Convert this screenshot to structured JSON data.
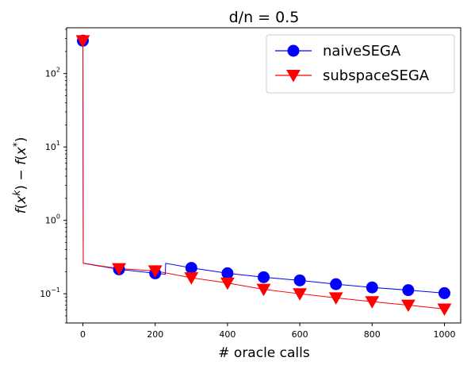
{
  "chart_data": {
    "type": "line",
    "title": "d/n = 0.5",
    "xlabel": "# oracle calls",
    "ylabel": "f(x^k) − f(x*)",
    "yscale": "log",
    "xlim": [
      -45,
      1045
    ],
    "ylim": [
      0.04,
      420
    ],
    "xticks": [
      0,
      200,
      400,
      600,
      800,
      1000
    ],
    "xtick_labels": [
      "0",
      "200",
      "400",
      "600",
      "800",
      "1000"
    ],
    "yticks": [
      0.1,
      1,
      10,
      100
    ],
    "ytick_labels": [
      "10",
      "10",
      "10",
      "10"
    ],
    "ytick_exponents": [
      "−1",
      "0",
      "1",
      "2"
    ],
    "grid": false,
    "legend_position": "upper right",
    "series": [
      {
        "name": "naiveSEGA",
        "color": "#0000ff",
        "marker": "circle",
        "x": [
          0,
          1,
          100,
          200,
          228,
          229,
          300,
          400,
          500,
          600,
          700,
          800,
          900,
          1000
        ],
        "y": [
          280,
          0.26,
          0.215,
          0.19,
          0.185,
          0.26,
          0.225,
          0.19,
          0.168,
          0.152,
          0.135,
          0.122,
          0.112,
          0.102
        ],
        "marker_x": [
          0,
          100,
          200,
          300,
          400,
          500,
          600,
          700,
          800,
          900,
          1000
        ],
        "marker_y": [
          280,
          0.215,
          0.19,
          0.225,
          0.19,
          0.168,
          0.152,
          0.135,
          0.122,
          0.112,
          0.102
        ]
      },
      {
        "name": "subspaceSEGA",
        "color": "#ff0000",
        "marker": "triangle-down",
        "x": [
          0,
          1,
          100,
          200,
          300,
          400,
          500,
          600,
          700,
          800,
          900,
          1000
        ],
        "y": [
          280,
          0.26,
          0.22,
          0.205,
          0.165,
          0.14,
          0.115,
          0.1,
          0.088,
          0.078,
          0.07,
          0.062
        ],
        "marker_x": [
          0,
          100,
          200,
          300,
          400,
          500,
          600,
          700,
          800,
          900,
          1000
        ],
        "marker_y": [
          280,
          0.22,
          0.205,
          0.165,
          0.14,
          0.115,
          0.1,
          0.088,
          0.078,
          0.07,
          0.062
        ]
      }
    ]
  }
}
